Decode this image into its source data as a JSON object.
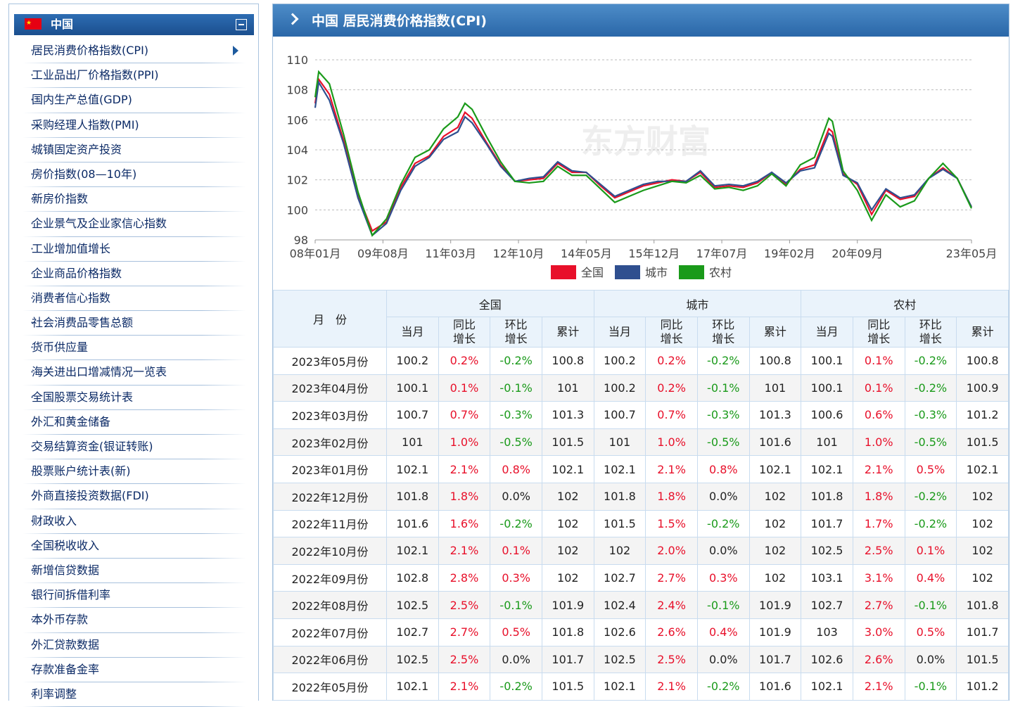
{
  "sidebar": {
    "title": "中国",
    "items": [
      "居民消费价格指数(CPI)",
      "工业品出厂价格指数(PPI)",
      "国内生产总值(GDP)",
      "采购经理人指数(PMI)",
      "城镇固定资产投资",
      "房价指数(08—10年)",
      "新房价指数",
      "企业景气及企业家信心指数",
      "工业增加值增长",
      "企业商品价格指数",
      "消费者信心指数",
      "社会消费品零售总额",
      "货币供应量",
      "海关进出口增减情况一览表",
      "全国股票交易统计表",
      "外汇和黄金储备",
      "交易结算资金(银证转账)",
      "股票账户统计表(新)",
      "外商直接投资数据(FDI)",
      "财政收入",
      "全国税收收入",
      "新增信贷数据",
      "银行间拆借利率",
      "本外币存款",
      "外汇贷款数据",
      "存款准备金率",
      "利率调整"
    ]
  },
  "header": {
    "title": "中国 居民消费价格指数(CPI)"
  },
  "chart_data": {
    "type": "line",
    "watermark": "东方财富",
    "x": [
      0,
      1,
      4,
      8,
      12,
      16,
      20,
      24,
      28,
      32,
      36,
      40,
      42,
      44,
      48,
      52,
      56,
      60,
      64,
      68,
      72,
      76,
      80,
      84,
      88,
      92,
      96,
      100,
      104,
      108,
      112,
      116,
      120,
      124,
      128,
      132,
      136,
      140,
      144,
      145,
      148,
      152,
      156,
      160,
      164,
      168,
      172,
      176,
      180,
      184
    ],
    "xlim": [
      0,
      184
    ],
    "xticks": [
      {
        "value": 0,
        "label": "08年01月"
      },
      {
        "value": 19,
        "label": "09年08月"
      },
      {
        "value": 38,
        "label": "11年03月"
      },
      {
        "value": 57,
        "label": "12年10月"
      },
      {
        "value": 76,
        "label": "14年05月"
      },
      {
        "value": 95,
        "label": "15年12月"
      },
      {
        "value": 114,
        "label": "17年07月"
      },
      {
        "value": 133,
        "label": "19年02月"
      },
      {
        "value": 152,
        "label": "20年09月"
      },
      {
        "value": 184,
        "label": "23年05月"
      }
    ],
    "ylim": [
      98,
      110
    ],
    "yticks": [
      98,
      100,
      102,
      104,
      106,
      108,
      110
    ],
    "grid": true,
    "series": [
      {
        "name": "全国",
        "color": "#e8102a",
        "values": [
          107.1,
          108.7,
          107.7,
          104.6,
          101.0,
          98.6,
          99.2,
          101.5,
          103.1,
          103.6,
          104.9,
          105.5,
          106.5,
          106.1,
          104.5,
          103.0,
          101.9,
          102.0,
          102.1,
          103.1,
          102.5,
          102.5,
          101.6,
          100.8,
          101.2,
          101.6,
          101.8,
          102.0,
          101.9,
          102.5,
          101.5,
          101.6,
          101.5,
          101.8,
          102.5,
          101.7,
          102.7,
          103.0,
          105.4,
          105.2,
          102.4,
          101.7,
          99.7,
          101.3,
          100.7,
          100.9,
          102.1,
          102.8,
          102.1,
          100.2
        ]
      },
      {
        "name": "城市",
        "color": "#2f4f8f",
        "values": [
          106.8,
          108.5,
          107.3,
          104.4,
          100.8,
          98.3,
          99.1,
          101.3,
          102.9,
          103.5,
          104.7,
          105.2,
          106.2,
          105.8,
          104.4,
          102.9,
          101.9,
          102.1,
          102.2,
          103.2,
          102.6,
          102.5,
          101.7,
          100.9,
          101.3,
          101.7,
          101.9,
          101.9,
          101.9,
          102.6,
          101.6,
          101.7,
          101.6,
          101.9,
          102.5,
          101.8,
          102.6,
          102.8,
          105.1,
          104.9,
          102.3,
          101.8,
          100.0,
          101.4,
          100.8,
          101.0,
          102.1,
          102.7,
          102.1,
          100.2
        ]
      },
      {
        "name": "农村",
        "color": "#1a9a1a",
        "values": [
          107.5,
          109.2,
          108.4,
          105.0,
          101.2,
          98.3,
          99.4,
          101.7,
          103.5,
          104.0,
          105.4,
          106.2,
          107.1,
          106.7,
          104.9,
          103.2,
          101.9,
          101.8,
          101.9,
          102.9,
          102.3,
          102.3,
          101.4,
          100.5,
          100.9,
          101.3,
          101.6,
          101.9,
          101.8,
          102.3,
          101.4,
          101.5,
          101.3,
          101.6,
          102.4,
          101.6,
          103.0,
          103.5,
          106.1,
          105.9,
          102.6,
          101.3,
          99.3,
          101.0,
          100.2,
          100.6,
          102.1,
          103.1,
          102.1,
          100.1
        ]
      }
    ]
  },
  "table": {
    "month_header": "月　份",
    "groups": [
      "全国",
      "城市",
      "农村"
    ],
    "subheaders": [
      "当月",
      "同比增长",
      "环比增长",
      "累计",
      "当月",
      "同比增长",
      "环比增长",
      "累计",
      "当月",
      "同比增长",
      "环比增长",
      "累计"
    ],
    "rows": [
      [
        "2023年05月份",
        "100.2",
        "0.2%",
        "-0.2%",
        "100.8",
        "100.2",
        "0.2%",
        "-0.2%",
        "100.8",
        "100.1",
        "0.1%",
        "-0.2%",
        "100.8"
      ],
      [
        "2023年04月份",
        "100.1",
        "0.1%",
        "-0.1%",
        "101",
        "100.2",
        "0.2%",
        "-0.1%",
        "101",
        "100.1",
        "0.1%",
        "-0.2%",
        "100.9"
      ],
      [
        "2023年03月份",
        "100.7",
        "0.7%",
        "-0.3%",
        "101.3",
        "100.7",
        "0.7%",
        "-0.3%",
        "101.3",
        "100.6",
        "0.6%",
        "-0.3%",
        "101.2"
      ],
      [
        "2023年02月份",
        "101",
        "1.0%",
        "-0.5%",
        "101.5",
        "101",
        "1.0%",
        "-0.5%",
        "101.6",
        "101",
        "1.0%",
        "-0.5%",
        "101.5"
      ],
      [
        "2023年01月份",
        "102.1",
        "2.1%",
        "0.8%",
        "102.1",
        "102.1",
        "2.1%",
        "0.8%",
        "102.1",
        "102.1",
        "2.1%",
        "0.5%",
        "102.1"
      ],
      [
        "2022年12月份",
        "101.8",
        "1.8%",
        "0.0%",
        "102",
        "101.8",
        "1.8%",
        "0.0%",
        "102",
        "101.8",
        "1.8%",
        "-0.2%",
        "102"
      ],
      [
        "2022年11月份",
        "101.6",
        "1.6%",
        "-0.2%",
        "102",
        "101.5",
        "1.5%",
        "-0.2%",
        "102",
        "101.7",
        "1.7%",
        "-0.2%",
        "102"
      ],
      [
        "2022年10月份",
        "102.1",
        "2.1%",
        "0.1%",
        "102",
        "102",
        "2.0%",
        "0.0%",
        "102",
        "102.5",
        "2.5%",
        "0.1%",
        "102"
      ],
      [
        "2022年09月份",
        "102.8",
        "2.8%",
        "0.3%",
        "102",
        "102.7",
        "2.7%",
        "0.3%",
        "102",
        "103.1",
        "3.1%",
        "0.4%",
        "102"
      ],
      [
        "2022年08月份",
        "102.5",
        "2.5%",
        "-0.1%",
        "101.9",
        "102.4",
        "2.4%",
        "-0.1%",
        "101.9",
        "102.7",
        "2.7%",
        "-0.1%",
        "101.8"
      ],
      [
        "2022年07月份",
        "102.7",
        "2.7%",
        "0.5%",
        "101.8",
        "102.6",
        "2.6%",
        "0.4%",
        "101.9",
        "103",
        "3.0%",
        "0.5%",
        "101.7"
      ],
      [
        "2022年06月份",
        "102.5",
        "2.5%",
        "0.0%",
        "101.7",
        "102.5",
        "2.5%",
        "0.0%",
        "101.7",
        "102.6",
        "2.6%",
        "0.0%",
        "101.5"
      ],
      [
        "2022年05月份",
        "102.1",
        "2.1%",
        "-0.2%",
        "101.5",
        "102.1",
        "2.1%",
        "-0.2%",
        "101.6",
        "102.1",
        "2.1%",
        "-0.1%",
        "101.2"
      ]
    ]
  }
}
